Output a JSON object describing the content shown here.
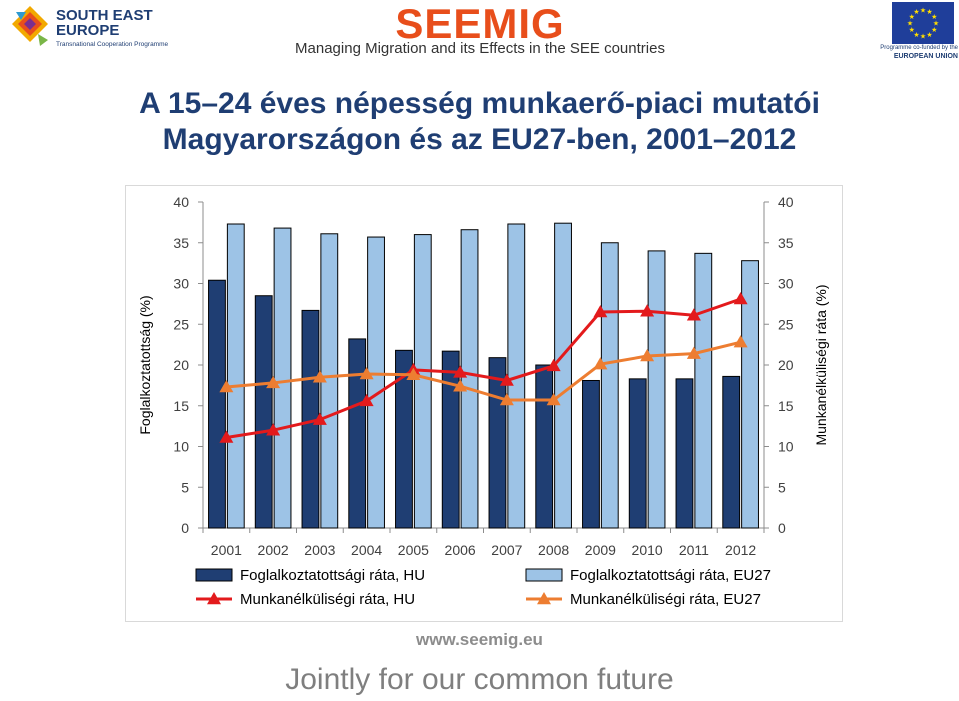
{
  "header": {
    "see_logo_line1": "SOUTH EAST",
    "see_logo_line2": "EUROPE",
    "see_logo_sub": "Transnational Cooperation Programme",
    "seemig_logo": "SEEMIG",
    "tagline": "Managing Migration and its Effects in the SEE countries",
    "eu_line1": "Programme co-funded by the",
    "eu_line2": "EUROPEAN UNION"
  },
  "title_line1": "A 15–24 éves népesség munkaerő-piaci mutatói",
  "title_line2": "Magyarországon és az EU27-ben, 2001–2012",
  "colors": {
    "title": "#1f3e73",
    "hu_employment": "#1f3e73",
    "eu_employment": "#9dc3e6",
    "hu_unemployment": "#e31a1c",
    "eu_unemployment": "#ed7d31"
  },
  "chart_data": {
    "type": "bar+line",
    "categories": [
      "2001",
      "2002",
      "2003",
      "2004",
      "2005",
      "2006",
      "2007",
      "2008",
      "2009",
      "2010",
      "2011",
      "2012"
    ],
    "y_left_label": "Foglalkoztatottság (%)",
    "y_right_label": "Munkanélküliségi ráta (%)",
    "ylim": [
      0,
      40
    ],
    "yticks": [
      0,
      5,
      10,
      15,
      20,
      25,
      30,
      35,
      40
    ],
    "bar_series": [
      {
        "name": "Foglalkoztatottsági ráta, HU",
        "values": [
          30.4,
          28.5,
          26.7,
          23.2,
          21.8,
          21.7,
          20.9,
          20.0,
          18.1,
          18.3,
          18.3,
          18.6
        ]
      },
      {
        "name": "Foglalkoztatottsági ráta, EU27",
        "values": [
          37.3,
          36.8,
          36.1,
          35.7,
          36.0,
          36.6,
          37.3,
          37.4,
          35.0,
          34.0,
          33.7,
          32.8
        ]
      }
    ],
    "line_series": [
      {
        "name": "Munkanélküliségi ráta, HU",
        "values": [
          11.1,
          12.0,
          13.3,
          15.6,
          19.4,
          19.1,
          18.1,
          19.9,
          26.5,
          26.6,
          26.1,
          28.1
        ]
      },
      {
        "name": "Munkanélküliségi ráta, EU27",
        "values": [
          17.3,
          17.8,
          18.5,
          18.9,
          18.8,
          17.4,
          15.7,
          15.7,
          20.1,
          21.1,
          21.4,
          22.8
        ]
      }
    ],
    "legend_position": "bottom",
    "grid": false
  },
  "footer": {
    "website": "www.seemig.eu",
    "slogan": "Jointly for our common future"
  }
}
